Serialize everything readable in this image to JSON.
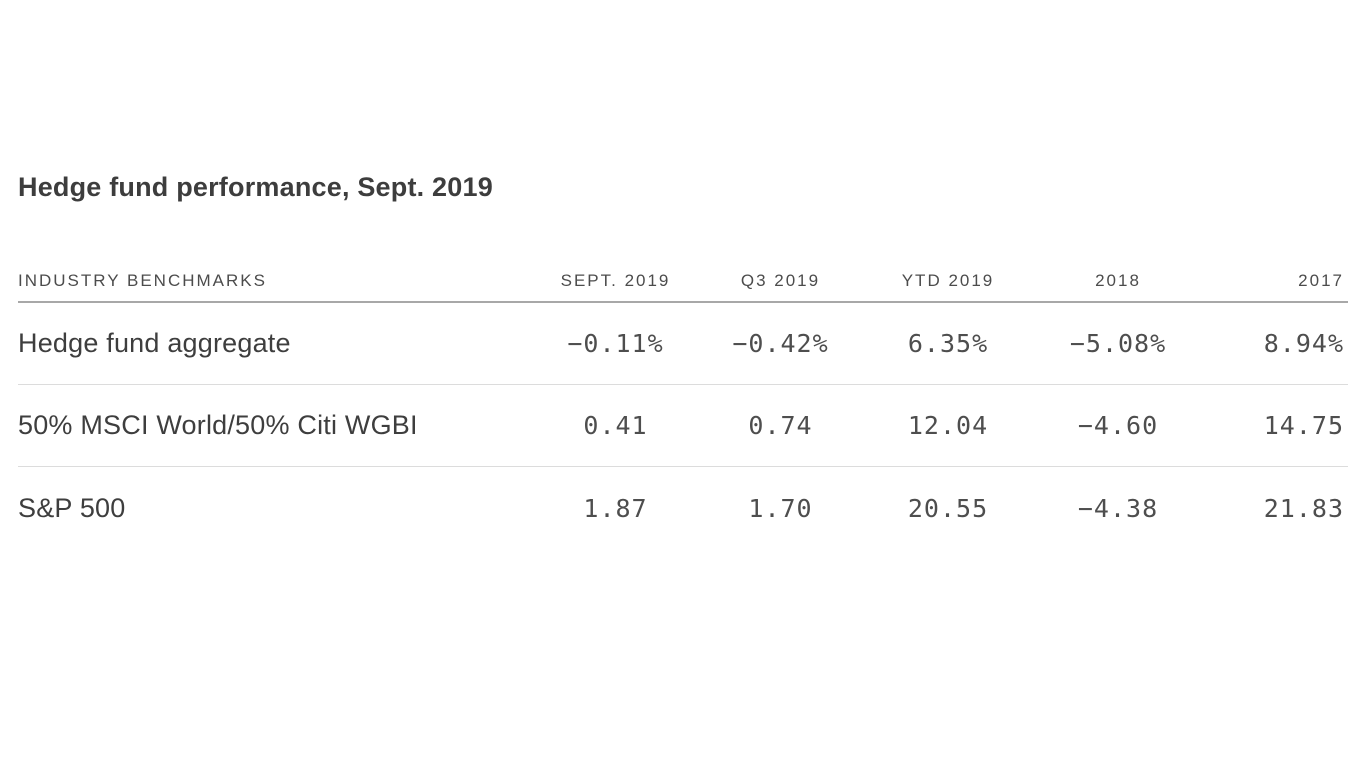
{
  "page": {
    "background": "#ffffff"
  },
  "title": "Hedge fund performance, Sept. 2019",
  "table": {
    "header": {
      "label": "INDUSTRY BENCHMARKS",
      "columns": [
        "SEPT. 2019",
        "Q3 2019",
        "YTD 2019",
        "2018",
        "2017"
      ]
    },
    "rows": [
      {
        "label": "Hedge fund aggregate",
        "values": [
          "−0.11%",
          "−0.42%",
          "6.35%",
          "−5.08%",
          "8.94%"
        ]
      },
      {
        "label": "50% MSCI World/50% Citi WGBI",
        "values": [
          "0.41",
          "0.74",
          "12.04",
          "−4.60",
          "14.75"
        ]
      },
      {
        "label": "S&P 500",
        "values": [
          "1.87",
          "1.70",
          "20.55",
          "−4.38",
          "21.83"
        ]
      }
    ]
  },
  "colors": {
    "title_text": "#3d3d3d",
    "header_text": "#4c4c4c",
    "label_text": "#3e3e3e",
    "number_text": "#4e4e4e",
    "header_rule": "#a8a8a8",
    "row_divider": "#dcdcdc",
    "background": "#ffffff"
  },
  "chart_data": {
    "type": "table",
    "title": "Hedge fund performance, Sept. 2019",
    "columns": [
      "INDUSTRY BENCHMARKS",
      "SEPT. 2019",
      "Q3 2019",
      "YTD 2019",
      "2018",
      "2017"
    ],
    "unit": "% (percent return, shown on first row only)",
    "rows": [
      {
        "label": "Hedge fund aggregate",
        "values": [
          -0.11,
          -0.42,
          6.35,
          -5.08,
          8.94
        ]
      },
      {
        "label": "50% MSCI World/50% Citi WGBI",
        "values": [
          0.41,
          0.74,
          12.04,
          -4.6,
          14.75
        ]
      },
      {
        "label": "S&P 500",
        "values": [
          1.87,
          1.7,
          20.55,
          -4.38,
          21.83
        ]
      }
    ],
    "layout": {
      "value_font": "monospace",
      "header_underline": true,
      "row_dividers": true,
      "grid": "off"
    }
  }
}
